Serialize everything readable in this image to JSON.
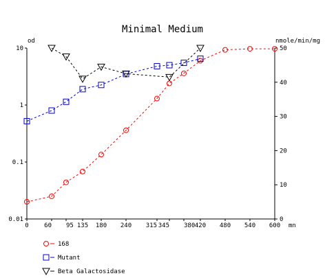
{
  "chart_data": {
    "type": "line",
    "title": "Minimal Medium",
    "left_axis": {
      "label": "od",
      "scale": "log",
      "range": [
        0.01,
        10
      ],
      "ticks": [
        {
          "value": 0.01,
          "label": "0.01"
        },
        {
          "value": 0.1,
          "label": "0.1"
        },
        {
          "value": 1,
          "label": "1"
        },
        {
          "value": 10,
          "label": "10"
        }
      ]
    },
    "right_axis": {
      "label": "nmole/min/mg",
      "scale": "linear",
      "range": [
        0,
        50
      ],
      "ticks": [
        {
          "value": 0,
          "label": "0"
        },
        {
          "value": 10,
          "label": "10"
        },
        {
          "value": 20,
          "label": "20"
        },
        {
          "value": 30,
          "label": "30"
        },
        {
          "value": 40,
          "label": "40"
        },
        {
          "value": 50,
          "label": "50"
        }
      ]
    },
    "x_axis": {
      "label": "mn",
      "range": [
        0,
        600
      ],
      "ticks": [
        {
          "value": 0,
          "label": "0"
        },
        {
          "value": 60,
          "label": "60"
        },
        {
          "value": 95,
          "label": "95"
        },
        {
          "value": 135,
          "label": "135"
        },
        {
          "value": 180,
          "label": "180"
        },
        {
          "value": 240,
          "label": "240"
        },
        {
          "value": 315,
          "label": "315"
        },
        {
          "value": 345,
          "label": "345"
        },
        {
          "value": 380,
          "label": "380"
        },
        {
          "value": 420,
          "label": "420"
        },
        {
          "value": 480,
          "label": "480"
        },
        {
          "value": 540,
          "label": "540"
        },
        {
          "value": 600,
          "label": "600"
        }
      ]
    },
    "grid": false,
    "legend_position": "bottom-left",
    "series": [
      {
        "name": "168",
        "axis": "left",
        "color": "#ff0000",
        "marker": "circle",
        "line": "dashed",
        "x": [
          0,
          60,
          95,
          135,
          180,
          240,
          315,
          345,
          380,
          420,
          480,
          540,
          600
        ],
        "y": [
          0.02,
          0.025,
          0.044,
          0.068,
          0.135,
          0.36,
          1.3,
          2.4,
          3.6,
          6.0,
          9.3,
          9.7,
          9.7
        ]
      },
      {
        "name": "Mutant",
        "axis": "left",
        "color": "#0000cc",
        "marker": "square",
        "line": "dashed",
        "x": [
          0,
          60,
          95,
          135,
          180,
          240,
          315,
          345,
          380,
          420
        ],
        "y": [
          0.52,
          0.8,
          1.14,
          1.9,
          2.25,
          3.5,
          4.8,
          5.0,
          5.5,
          6.5
        ]
      },
      {
        "name": "Beta Galactosidase",
        "axis": "right",
        "color": "#000000",
        "marker": "triangle-down",
        "line": "dashed",
        "x": [
          60,
          95,
          135,
          180,
          240,
          345,
          420
        ],
        "y": [
          50,
          47.5,
          41,
          44.5,
          42.5,
          41.5,
          50
        ]
      }
    ]
  }
}
